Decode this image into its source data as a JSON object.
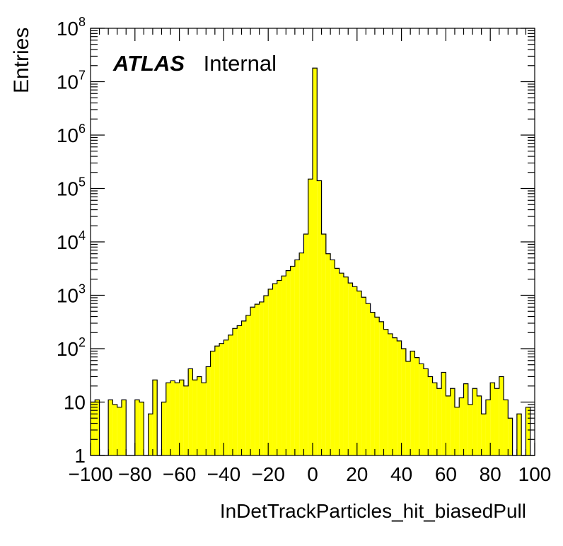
{
  "chart_data": {
    "type": "bar",
    "style": "histogram",
    "fill_color": "#ffff00",
    "line_color": "#000000",
    "ylabel": "Entries",
    "xlabel": "InDetTrackParticles_hit_biasedPull",
    "label_bold": "ATLAS",
    "label_normal": "Internal",
    "xlim": [
      -100,
      100
    ],
    "ylim": [
      1,
      100000000
    ],
    "yscale": "log",
    "bin_width": 2,
    "x_ticks": [
      "−100",
      "−80",
      "−60",
      "−40",
      "−20",
      "0",
      "20",
      "40",
      "60",
      "80",
      "100"
    ],
    "y_ticks": [
      {
        "base": "1",
        "exp": ""
      },
      {
        "base": "10",
        "exp": ""
      },
      {
        "base": "10",
        "exp": "2"
      },
      {
        "base": "10",
        "exp": "3"
      },
      {
        "base": "10",
        "exp": "4"
      },
      {
        "base": "10",
        "exp": "5"
      },
      {
        "base": "10",
        "exp": "6"
      },
      {
        "base": "10",
        "exp": "7"
      },
      {
        "base": "10",
        "exp": "8"
      }
    ],
    "bin_edges_start": -100,
    "values": [
      10,
      11,
      0,
      0,
      11,
      9,
      8,
      11,
      0,
      0,
      11,
      10,
      0,
      6,
      26,
      0,
      10,
      23,
      25,
      23,
      26,
      20,
      42,
      26,
      30,
      23,
      46,
      90,
      112,
      125,
      145,
      180,
      240,
      270,
      330,
      420,
      600,
      680,
      750,
      980,
      1300,
      1650,
      1900,
      2300,
      2900,
      3500,
      4600,
      6200,
      14000,
      150000,
      18000000,
      140000,
      14000,
      6000,
      4600,
      3200,
      2600,
      2200,
      1700,
      1450,
      1200,
      920,
      700,
      480,
      390,
      320,
      230,
      190,
      160,
      140,
      100,
      58,
      90,
      68,
      52,
      42,
      30,
      23,
      18,
      36,
      13,
      18,
      8,
      12,
      22,
      9,
      18,
      13,
      6,
      11,
      23,
      18,
      30,
      11,
      5,
      0,
      6,
      0,
      8,
      0
    ]
  }
}
